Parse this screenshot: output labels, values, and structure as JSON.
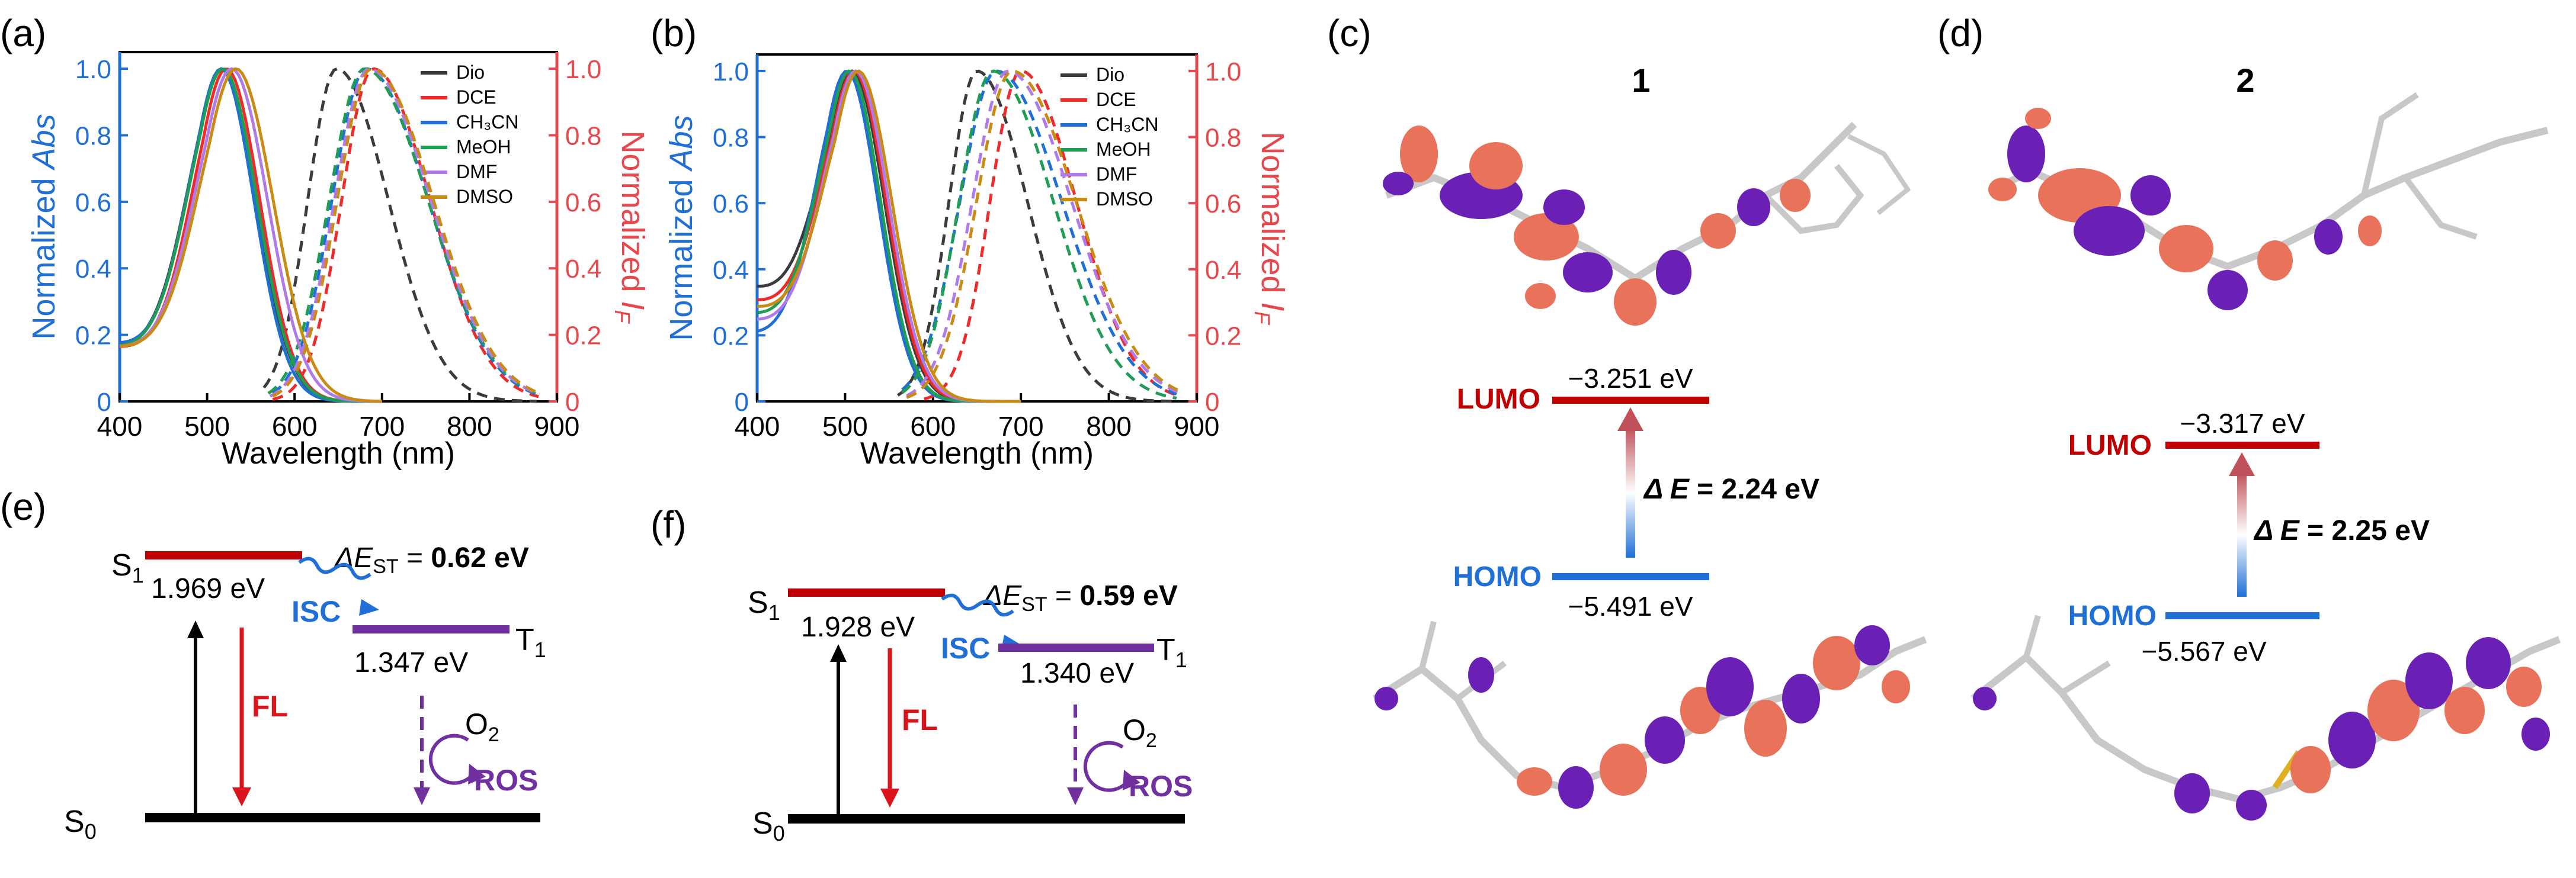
{
  "panels": {
    "a": "(a)",
    "b": "(b)",
    "c": "(c)",
    "d": "(d)",
    "e": "(e)",
    "f": "(f)"
  },
  "colors": {
    "abs_axis": "#1f6fd6",
    "pl_axis": "#e8474c",
    "lumo": "#c00000",
    "homo": "#1f6fd6",
    "triplet": "#7030a0",
    "fl": "#d9141a",
    "isc": "#1f6fd6",
    "ros": "#7030a0",
    "orbital_pos": "#e8735a",
    "orbital_neg": "#6a1fb5"
  },
  "chart_data": [
    {
      "panel": "a",
      "type": "line",
      "xlabel": "Wavelength (nm)",
      "ylabel_left": "Normalized Abs",
      "ylabel_right": "Normalized I_F",
      "xlim": [
        400,
        900
      ],
      "ylim": [
        0,
        1.05
      ],
      "xticks": [
        400,
        500,
        600,
        700,
        800,
        900
      ],
      "yticks_left": [
        "0",
        "0.2",
        "0.4",
        "0.6",
        "0.8",
        "1.0"
      ],
      "yticks_right": [
        "0",
        "0.2",
        "0.4",
        "0.6",
        "0.8",
        "1.0"
      ],
      "legend_position": "top-right",
      "series": [
        {
          "name": "Dio",
          "color": "#3b3b3b",
          "abs_peak": 517,
          "abs_w": 55,
          "abs_base": 0.16,
          "pl_peak": 648,
          "pl_w": 62,
          "pl_start": 565
        },
        {
          "name": "DCE",
          "color": "#ee2a2a",
          "abs_peak": 522,
          "abs_w": 54,
          "abs_base": 0.16,
          "pl_peak": 690,
          "pl_w": 68,
          "pl_start": 575
        },
        {
          "name": "CH₃CN",
          "color": "#1f6fd6",
          "abs_peak": 516,
          "abs_w": 53,
          "abs_base": 0.17,
          "pl_peak": 682,
          "pl_w": 74,
          "pl_start": 575
        },
        {
          "name": "MeOH",
          "color": "#1f9d55",
          "abs_peak": 518,
          "abs_w": 55,
          "abs_base": 0.16,
          "pl_peak": 680,
          "pl_w": 76,
          "pl_start": 570
        },
        {
          "name": "DMF",
          "color": "#b07ae8",
          "abs_peak": 528,
          "abs_w": 58,
          "abs_base": 0.16,
          "pl_peak": 685,
          "pl_w": 74,
          "pl_start": 572
        },
        {
          "name": "DMSO",
          "color": "#c98b14",
          "abs_peak": 533,
          "abs_w": 60,
          "abs_base": 0.16,
          "pl_peak": 688,
          "pl_w": 74,
          "pl_start": 575
        }
      ]
    },
    {
      "panel": "b",
      "type": "line",
      "xlabel": "Wavelength (nm)",
      "ylabel_left": "Normalized Abs",
      "ylabel_right": "Normalized I_F",
      "xlim": [
        400,
        900
      ],
      "ylim": [
        0,
        1.05
      ],
      "xticks": [
        400,
        500,
        600,
        700,
        800,
        900
      ],
      "yticks_left": [
        "0",
        "0.2",
        "0.4",
        "0.6",
        "0.8",
        "1.0"
      ],
      "yticks_right": [
        "0",
        "0.2",
        "0.4",
        "0.6",
        "0.8",
        "1.0"
      ],
      "legend_position": "top-right",
      "series": [
        {
          "name": "Dio",
          "color": "#3b3b3b",
          "abs_peak": 508,
          "abs_w": 52,
          "abs_base": 0.34,
          "pl_peak": 650,
          "pl_w": 60,
          "pl_start": 560
        },
        {
          "name": "DCE",
          "color": "#ee2a2a",
          "abs_peak": 510,
          "abs_w": 52,
          "abs_base": 0.3,
          "pl_peak": 700,
          "pl_w": 66,
          "pl_start": 590
        },
        {
          "name": "CH₃CN",
          "color": "#1f6fd6",
          "abs_peak": 502,
          "abs_w": 50,
          "abs_base": 0.2,
          "pl_peak": 672,
          "pl_w": 78,
          "pl_start": 565
        },
        {
          "name": "MeOH",
          "color": "#1f9d55",
          "abs_peak": 505,
          "abs_w": 50,
          "abs_base": 0.26,
          "pl_peak": 668,
          "pl_w": 72,
          "pl_start": 565
        },
        {
          "name": "DMF",
          "color": "#b07ae8",
          "abs_peak": 512,
          "abs_w": 53,
          "abs_base": 0.24,
          "pl_peak": 685,
          "pl_w": 76,
          "pl_start": 570
        },
        {
          "name": "DMSO",
          "color": "#c98b14",
          "abs_peak": 515,
          "abs_w": 54,
          "abs_base": 0.28,
          "pl_peak": 690,
          "pl_w": 76,
          "pl_start": 570
        }
      ]
    }
  ],
  "orbitals": {
    "c": {
      "molecule": "1",
      "lumo_label": "LUMO",
      "lumo_energy": "−3.251 eV",
      "homo_label": "HOMO",
      "homo_energy": "−5.491 eV",
      "gap_prefix": "Δ E",
      "gap_value": " = 2.24 eV"
    },
    "d": {
      "molecule": "2",
      "lumo_label": "LUMO",
      "lumo_energy": "−3.317 eV",
      "homo_label": "HOMO",
      "homo_energy": "−5.567 eV",
      "gap_prefix": "Δ E",
      "gap_value": " = 2.25 eV"
    }
  },
  "jablonski": {
    "e": {
      "s1": "S",
      "s1_sub": "1",
      "s0": "S",
      "s0_sub": "0",
      "t1": "T",
      "t1_sub": "1",
      "s1_energy": "1.969 eV",
      "t1_energy": "1.347 eV",
      "dest_prefix": "ΔE",
      "dest_sub": "ST",
      "dest_eq": " = ",
      "dest_value": "0.62 eV",
      "isc": "ISC",
      "fl": "FL",
      "o2": "O",
      "o2_sub": "2",
      "ros": "ROS"
    },
    "f": {
      "s1": "S",
      "s1_sub": "1",
      "s0": "S",
      "s0_sub": "0",
      "t1": "T",
      "t1_sub": "1",
      "s1_energy": "1.928 eV",
      "t1_energy": "1.340 eV",
      "dest_prefix": "ΔE",
      "dest_sub": "ST",
      "dest_eq": " = ",
      "dest_value": "0.59 eV",
      "isc": "ISC",
      "fl": "FL",
      "o2": "O",
      "o2_sub": "2",
      "ros": "ROS"
    }
  }
}
